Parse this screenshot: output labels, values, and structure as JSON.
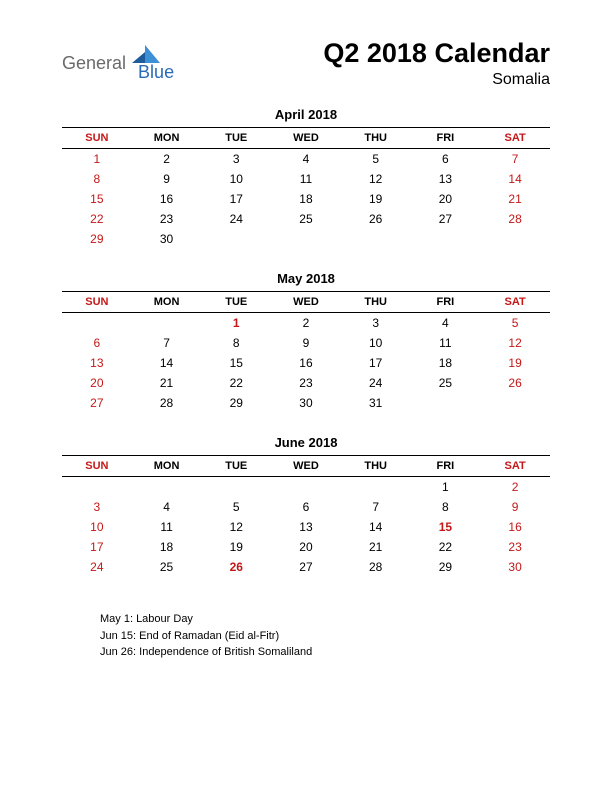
{
  "logo": {
    "text1": "General",
    "text2": "Blue",
    "color1": "#6a6a6a",
    "color2": "#2a6bb5",
    "shape_dark": "#1f5a9a",
    "shape_light": "#3d8fd6"
  },
  "header": {
    "title": "Q2 2018 Calendar",
    "subtitle": "Somalia"
  },
  "colors": {
    "text": "#000000",
    "weekend": "#c41818",
    "holiday": "#c41818",
    "background": "#ffffff"
  },
  "weekday_headers": [
    "SUN",
    "MON",
    "TUE",
    "WED",
    "THU",
    "FRI",
    "SAT"
  ],
  "months": [
    {
      "title": "April 2018",
      "weeks": [
        [
          {
            "d": 1,
            "w": true
          },
          {
            "d": 2
          },
          {
            "d": 3
          },
          {
            "d": 4
          },
          {
            "d": 5
          },
          {
            "d": 6
          },
          {
            "d": 7,
            "w": true
          }
        ],
        [
          {
            "d": 8,
            "w": true
          },
          {
            "d": 9
          },
          {
            "d": 10
          },
          {
            "d": 11
          },
          {
            "d": 12
          },
          {
            "d": 13
          },
          {
            "d": 14,
            "w": true
          }
        ],
        [
          {
            "d": 15,
            "w": true
          },
          {
            "d": 16
          },
          {
            "d": 17
          },
          {
            "d": 18
          },
          {
            "d": 19
          },
          {
            "d": 20
          },
          {
            "d": 21,
            "w": true
          }
        ],
        [
          {
            "d": 22,
            "w": true
          },
          {
            "d": 23
          },
          {
            "d": 24
          },
          {
            "d": 25
          },
          {
            "d": 26
          },
          {
            "d": 27
          },
          {
            "d": 28,
            "w": true
          }
        ],
        [
          {
            "d": 29,
            "w": true
          },
          {
            "d": 30
          },
          {},
          {},
          {},
          {},
          {}
        ]
      ]
    },
    {
      "title": "May 2018",
      "weeks": [
        [
          {},
          {},
          {
            "d": 1,
            "h": true
          },
          {
            "d": 2
          },
          {
            "d": 3
          },
          {
            "d": 4
          },
          {
            "d": 5,
            "w": true
          }
        ],
        [
          {
            "d": 6,
            "w": true
          },
          {
            "d": 7
          },
          {
            "d": 8
          },
          {
            "d": 9
          },
          {
            "d": 10
          },
          {
            "d": 11
          },
          {
            "d": 12,
            "w": true
          }
        ],
        [
          {
            "d": 13,
            "w": true
          },
          {
            "d": 14
          },
          {
            "d": 15
          },
          {
            "d": 16
          },
          {
            "d": 17
          },
          {
            "d": 18
          },
          {
            "d": 19,
            "w": true
          }
        ],
        [
          {
            "d": 20,
            "w": true
          },
          {
            "d": 21
          },
          {
            "d": 22
          },
          {
            "d": 23
          },
          {
            "d": 24
          },
          {
            "d": 25
          },
          {
            "d": 26,
            "w": true
          }
        ],
        [
          {
            "d": 27,
            "w": true
          },
          {
            "d": 28
          },
          {
            "d": 29
          },
          {
            "d": 30
          },
          {
            "d": 31
          },
          {},
          {}
        ]
      ]
    },
    {
      "title": "June 2018",
      "weeks": [
        [
          {},
          {},
          {},
          {},
          {},
          {
            "d": 1
          },
          {
            "d": 2,
            "w": true
          }
        ],
        [
          {
            "d": 3,
            "w": true
          },
          {
            "d": 4
          },
          {
            "d": 5
          },
          {
            "d": 6
          },
          {
            "d": 7
          },
          {
            "d": 8
          },
          {
            "d": 9,
            "w": true
          }
        ],
        [
          {
            "d": 10,
            "w": true
          },
          {
            "d": 11
          },
          {
            "d": 12
          },
          {
            "d": 13
          },
          {
            "d": 14
          },
          {
            "d": 15,
            "h": true
          },
          {
            "d": 16,
            "w": true
          }
        ],
        [
          {
            "d": 17,
            "w": true
          },
          {
            "d": 18
          },
          {
            "d": 19
          },
          {
            "d": 20
          },
          {
            "d": 21
          },
          {
            "d": 22
          },
          {
            "d": 23,
            "w": true
          }
        ],
        [
          {
            "d": 24,
            "w": true
          },
          {
            "d": 25
          },
          {
            "d": 26,
            "h": true
          },
          {
            "d": 27
          },
          {
            "d": 28
          },
          {
            "d": 29
          },
          {
            "d": 30,
            "w": true
          }
        ]
      ]
    }
  ],
  "notes": [
    "May 1: Labour Day",
    "Jun 15: End of Ramadan (Eid al-Fitr)",
    "Jun 26: Independence of British Somaliland"
  ]
}
